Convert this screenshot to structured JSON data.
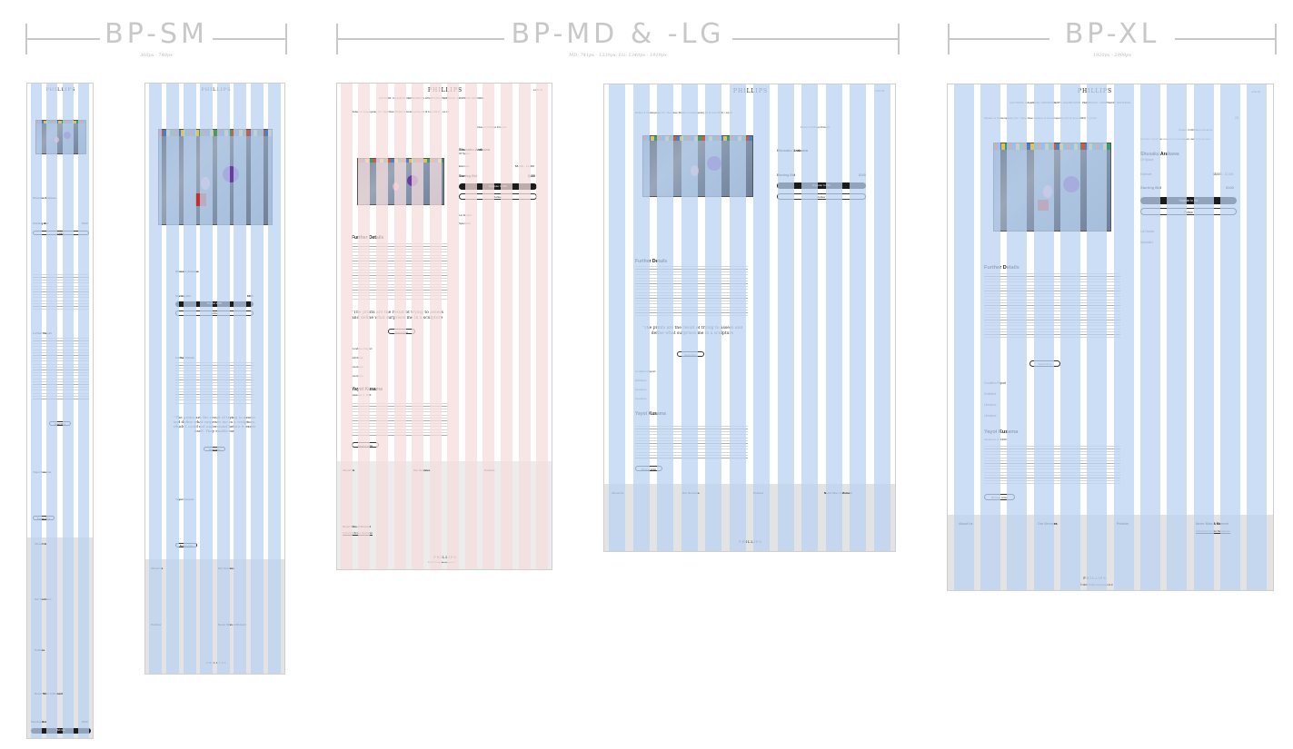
{
  "breakpoints": [
    {
      "label": "BP-SM",
      "range": "360px - 740px"
    },
    {
      "label": "BP-MD & -LG",
      "range": "MD: 741px - 1339px, LG: 1340px - 1919px"
    },
    {
      "label": "BP-XL",
      "range": "1920px - 2999px"
    }
  ],
  "colors": {
    "grid_column_blue": "#b9d3f2",
    "grid_column_pink": "#f6dede",
    "footer_grey": "#e3e3e3",
    "header_line": "#c8c8c8"
  },
  "page": {
    "logo": "PHILLIPS",
    "nav": [
      "AUCTIONS",
      "CALENDAR",
      "DEPARTMENTS",
      "EXHIBITIONS",
      "PERPETUAL",
      "DROPSHOP",
      "EDITORIAL"
    ],
    "login": "LOG IN",
    "breadcrumb": "Modern & Contemporary Art  >  New Now: Modern & Contemporary Art (3 June 2024)  >  Lot 23",
    "lot_number": "23",
    "timer": "Closes In   09 Days   23 Hours",
    "provenance": "PROPERTY FROM THE COLLECTION OF ROSA AND CARLOS DE LA CRUZ",
    "lot_badge": "23",
    "artist": "Shusaku Arakawa",
    "title": "Of Space",
    "estimate_label": "Estimate",
    "estimate_value": "$8,000 - 12,000",
    "starting_bid_label": "Starting Bid",
    "starting_bid_value": "$100",
    "register_button": "Register to Bid",
    "follow_button": "Follow",
    "lot_details": "Lot Details",
    "specialist": "Specialist",
    "further_details_heading": "Further Details",
    "quote": "\"The prints are the result of trying to assess and define what surprises me in a sculpture, which I could not understand before it exists itself. They enable me",
    "read_more": "Read More",
    "accordion": [
      "Condition Report",
      "Exhibited",
      "Literature",
      "Literature"
    ],
    "artist_section_name": "Yayoi Kusama",
    "artist_section_sub": "Japanese, b. 1929",
    "browse_artist": "Browse Artist",
    "footer": {
      "about_heading": "About Us",
      "about_items": [
        "Our History",
        "Our Team",
        "Locations",
        "Press",
        "Careers",
        "Sitemap"
      ],
      "services_heading": "Our Services",
      "services_items": [
        "How to Buy",
        "How to Sell",
        "Private Services",
        "Trusts, Estates & Valuations",
        "Fiduciary Services"
      ],
      "policies_heading": "Policies",
      "policies_items": [
        "Privacy Policy",
        "Cookie Policy",
        "Private Services",
        "Modern Slavery Policy"
      ],
      "newsletter_heading": "Never Miss A Moment",
      "newsletter_link": "Subscribe To Our Newsletter",
      "copyright": "© 2024 Phillips Auctioneers LLC"
    },
    "mobile_bar_label": "Starting Bid",
    "mobile_bar_value": "$100",
    "mobile_bar_button": "Bid Now"
  }
}
